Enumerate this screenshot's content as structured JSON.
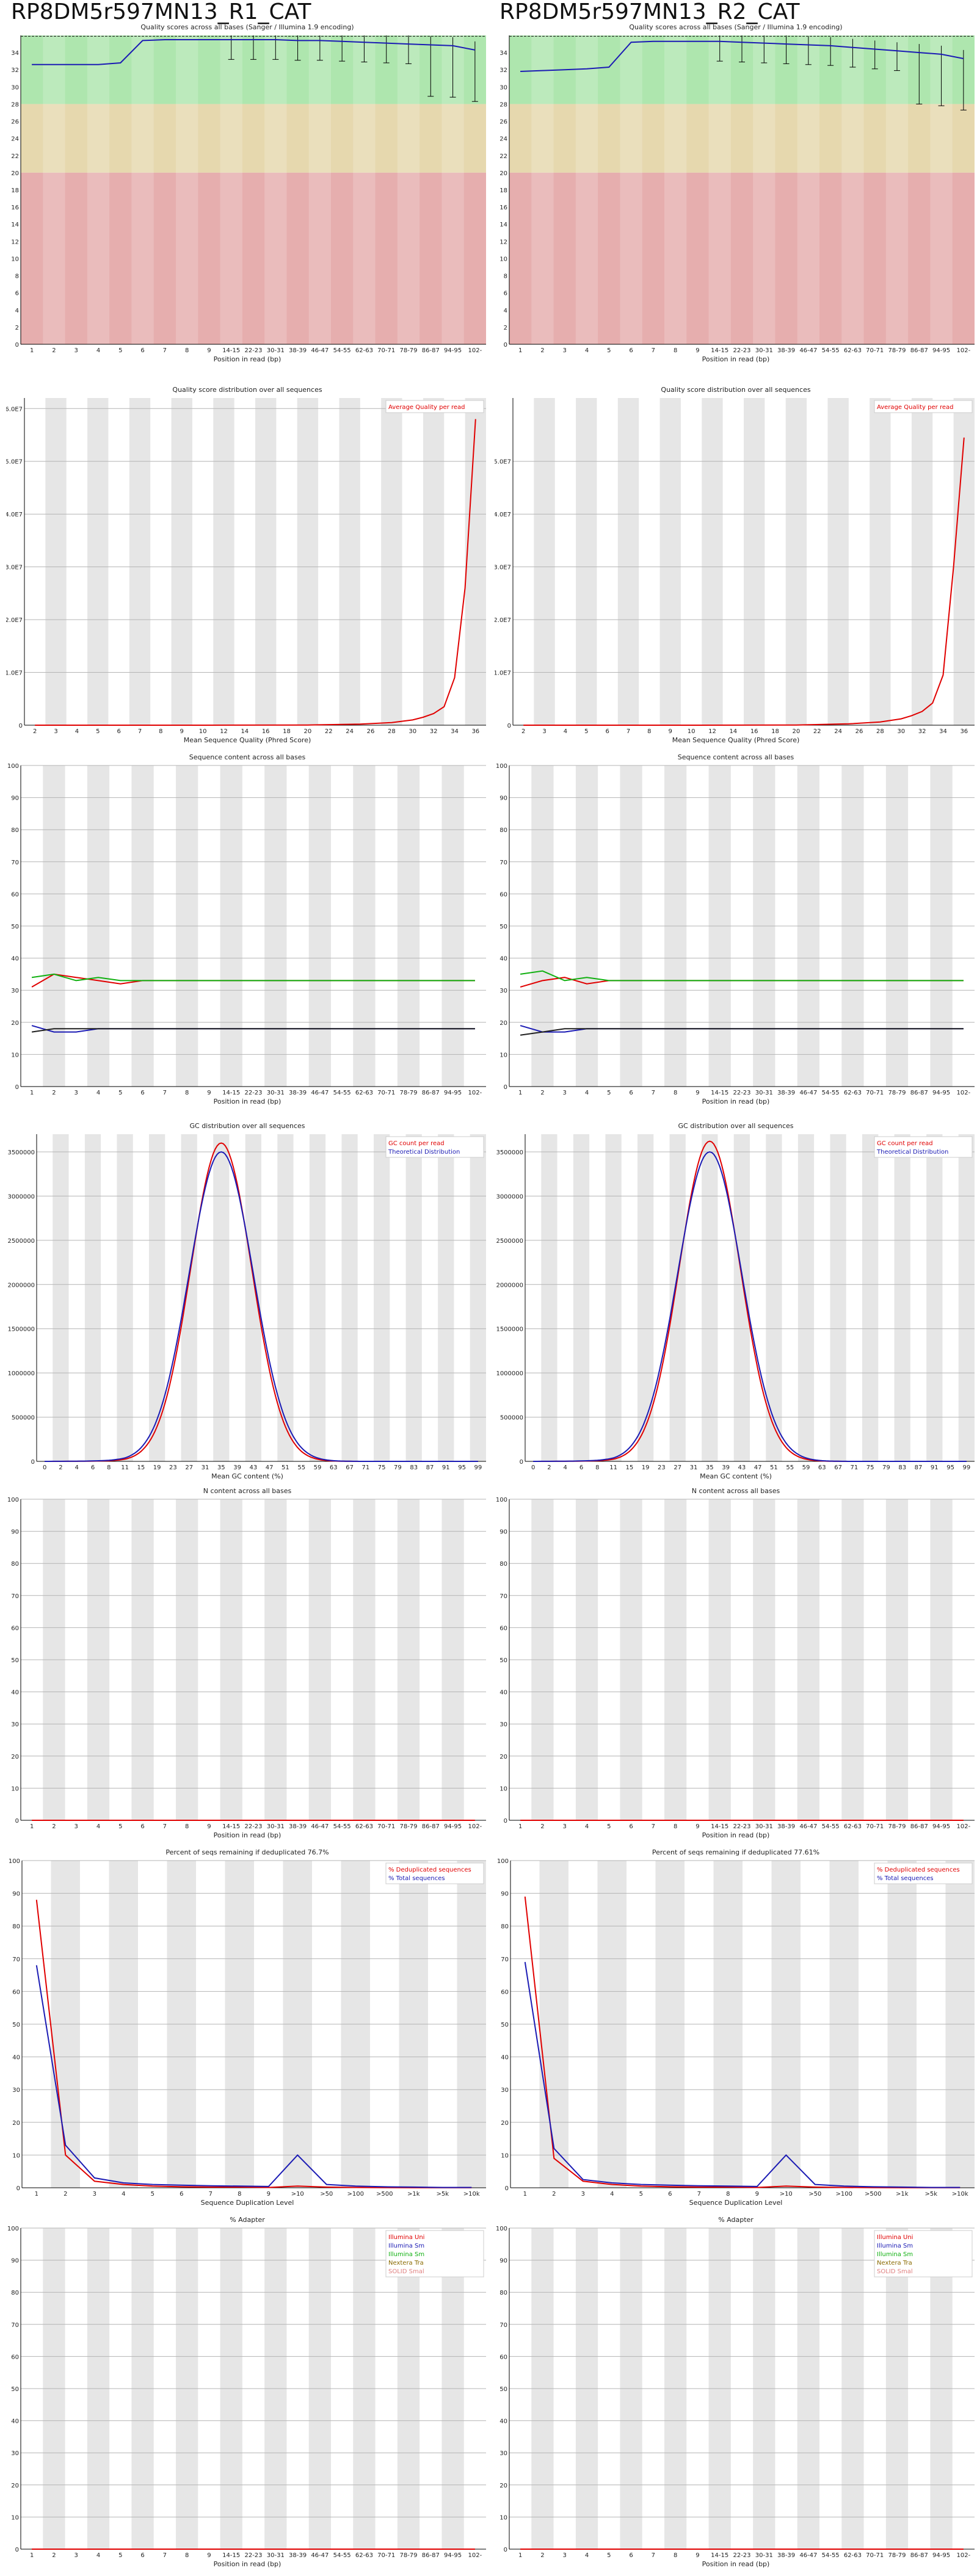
{
  "samples": [
    {
      "name": "RP8DM5r597MN13_R1_CAT"
    },
    {
      "name": "RP8DM5r597MN13_R2_CAT"
    }
  ],
  "colors": {
    "red": "#e00000",
    "blue": "#1b1bb4",
    "green": "#10b010",
    "black": "#202020",
    "qual_good": "#aee6ae",
    "qual_mid": "#e6d8ae",
    "qual_bad": "#e6aeae",
    "stripe": "#e6e6e6",
    "grid": "#b4b4b4"
  },
  "position_ticks": [
    "1",
    "2",
    "3",
    "4",
    "5",
    "6",
    "7",
    "8",
    "9",
    "14-15",
    "22-23",
    "30-31",
    "38-39",
    "46-47",
    "54-55",
    "62-63",
    "70-71",
    "78-79",
    "86-87",
    "94-95",
    "102-"
  ],
  "chart_data": [
    {
      "id": "r1-quality",
      "type": "line",
      "title": "Quality scores across all bases (Sanger / Illumina 1.9 encoding)",
      "xlabel": "Position in read (bp)",
      "ylabel": "",
      "ylim": [
        0,
        36
      ],
      "yticks": [
        "0",
        "2",
        "4",
        "6",
        "8",
        "10",
        "12",
        "14",
        "16",
        "18",
        "20",
        "22",
        "24",
        "26",
        "28",
        "30",
        "32",
        "34"
      ],
      "series": [
        {
          "values": [
            32.6,
            32.6,
            32.6,
            32.6,
            32.8,
            35.4,
            35.5,
            35.5,
            35.5,
            35.5,
            35.5,
            35.5,
            35.4,
            35.4,
            35.3,
            35.2,
            35.1,
            35.0,
            34.9,
            34.8,
            34.3
          ]
        }
      ]
    },
    {
      "id": "r2-quality",
      "type": "line",
      "title": "Quality scores across all bases (Sanger / Illumina 1.9 encoding)",
      "xlabel": "Position in read (bp)",
      "ylabel": "",
      "ylim": [
        0,
        36
      ],
      "yticks": [
        "0",
        "2",
        "4",
        "6",
        "8",
        "10",
        "12",
        "14",
        "16",
        "18",
        "20",
        "22",
        "24",
        "26",
        "28",
        "30",
        "32",
        "34"
      ],
      "series": [
        {
          "values": [
            31.8,
            31.9,
            32.0,
            32.1,
            32.3,
            35.2,
            35.3,
            35.3,
            35.3,
            35.3,
            35.2,
            35.1,
            35.0,
            34.9,
            34.8,
            34.6,
            34.4,
            34.2,
            34.0,
            33.8,
            33.3
          ]
        }
      ]
    },
    {
      "id": "r1-qdist",
      "type": "line",
      "title": "Quality score distribution over all sequences",
      "xlabel": "Mean Sequence Quality (Phred Score)",
      "ylabel": "",
      "ylim": [
        0,
        62000000
      ],
      "xlim": [
        2,
        37
      ],
      "yticks": [
        "0",
        "1.0E7",
        "2.0E7",
        "3.0E7",
        "4.0E7",
        "5.0E7",
        "6.0E7"
      ],
      "xticks": [
        "2",
        "3",
        "4",
        "5",
        "6",
        "7",
        "8",
        "9",
        "10",
        "12",
        "14",
        "16",
        "18",
        "20",
        "22",
        "24",
        "26",
        "28",
        "30",
        "32",
        "34",
        "36"
      ],
      "legend": [
        "Average Quality per read"
      ],
      "series": [
        {
          "name": "Average Quality per read",
          "x": [
            2,
            10,
            20,
            25,
            28,
            30,
            31,
            32,
            33,
            34,
            35,
            36
          ],
          "values": [
            0,
            0,
            40000,
            200000,
            500000,
            1000000,
            1500000,
            2200000,
            3500000,
            9000000,
            26000000,
            58000000
          ]
        }
      ]
    },
    {
      "id": "r2-qdist",
      "type": "line",
      "title": "Quality score distribution over all sequences",
      "xlabel": "Mean Sequence Quality (Phred Score)",
      "ylabel": "",
      "ylim": [
        0,
        62000000
      ],
      "xlim": [
        2,
        37
      ],
      "yticks": [
        "0",
        "1.0E7",
        "2.0E7",
        "3.0E7",
        "4.0E7",
        "5.0E7"
      ],
      "xticks": [
        "2",
        "3",
        "4",
        "5",
        "6",
        "7",
        "8",
        "9",
        "10",
        "12",
        "14",
        "16",
        "18",
        "20",
        "22",
        "24",
        "26",
        "28",
        "30",
        "32",
        "34",
        "36"
      ],
      "legend": [
        "Average Quality per read"
      ],
      "series": [
        {
          "name": "Average Quality per read",
          "x": [
            2,
            10,
            20,
            25,
            28,
            30,
            31,
            32,
            33,
            34,
            35,
            36
          ],
          "values": [
            0,
            0,
            40000,
            250000,
            600000,
            1200000,
            1800000,
            2600000,
            4200000,
            9500000,
            30000000,
            54500000
          ]
        }
      ]
    },
    {
      "id": "r1-content",
      "type": "line",
      "title": "Sequence content across all bases",
      "xlabel": "Position in read (bp)",
      "ylabel": "",
      "ylim": [
        0,
        100
      ],
      "yticks": [
        "0",
        "10",
        "20",
        "30",
        "40",
        "50",
        "60",
        "70",
        "80",
        "90",
        "100"
      ],
      "series": [
        {
          "values": [
            31,
            35,
            34,
            33,
            32,
            33,
            33,
            33,
            33,
            33,
            33,
            33,
            33,
            33,
            33,
            33,
            33,
            33,
            33,
            33,
            33
          ],
          "color": "red"
        },
        {
          "values": [
            34,
            35,
            33,
            34,
            33,
            33,
            33,
            33,
            33,
            33,
            33,
            33,
            33,
            33,
            33,
            33,
            33,
            33,
            33,
            33,
            33
          ],
          "color": "green"
        },
        {
          "values": [
            19,
            17,
            17,
            18,
            18,
            18,
            18,
            18,
            18,
            18,
            18,
            18,
            18,
            18,
            18,
            18,
            18,
            18,
            18,
            18,
            18
          ],
          "color": "blue"
        },
        {
          "values": [
            17,
            18,
            18,
            18,
            18,
            18,
            18,
            18,
            18,
            18,
            18,
            18,
            18,
            18,
            18,
            18,
            18,
            18,
            18,
            18,
            18
          ],
          "color": "black"
        }
      ]
    },
    {
      "id": "r2-content",
      "type": "line",
      "title": "Sequence content across all bases",
      "xlabel": "Position in read (bp)",
      "ylabel": "",
      "ylim": [
        0,
        100
      ],
      "yticks": [
        "0",
        "10",
        "20",
        "30",
        "40",
        "50",
        "60",
        "70",
        "80",
        "90",
        "100"
      ],
      "series": [
        {
          "values": [
            31,
            33,
            34,
            32,
            33,
            33,
            33,
            33,
            33,
            33,
            33,
            33,
            33,
            33,
            33,
            33,
            33,
            33,
            33,
            33,
            33
          ],
          "color": "red"
        },
        {
          "values": [
            35,
            36,
            33,
            34,
            33,
            33,
            33,
            33,
            33,
            33,
            33,
            33,
            33,
            33,
            33,
            33,
            33,
            33,
            33,
            33,
            33
          ],
          "color": "green"
        },
        {
          "values": [
            19,
            17,
            17,
            18,
            18,
            18,
            18,
            18,
            18,
            18,
            18,
            18,
            18,
            18,
            18,
            18,
            18,
            18,
            18,
            18,
            18
          ],
          "color": "blue"
        },
        {
          "values": [
            16,
            17,
            18,
            18,
            18,
            18,
            18,
            18,
            18,
            18,
            18,
            18,
            18,
            18,
            18,
            18,
            18,
            18,
            18,
            18,
            18
          ],
          "color": "black"
        }
      ]
    },
    {
      "id": "r1-gc",
      "type": "line",
      "title": "GC distribution over all sequences",
      "xlabel": "Mean GC content (%)",
      "ylabel": "",
      "ylim": [
        0,
        3700000
      ],
      "xlim": [
        0,
        101
      ],
      "yticks": [
        "0",
        "500000",
        "1000000",
        "1500000",
        "2000000",
        "2500000",
        "3000000",
        "3500000"
      ],
      "xticks": [
        "0",
        "2",
        "4",
        "6",
        "8",
        "11",
        "15",
        "19",
        "23",
        "27",
        "31",
        "35",
        "39",
        "43",
        "47",
        "51",
        "55",
        "59",
        "63",
        "67",
        "71",
        "75",
        "79",
        "83",
        "87",
        "91",
        "95",
        "99"
      ],
      "legend": [
        "GC count per read",
        "Theoretical Distribution"
      ],
      "series": [
        {
          "name": "GC count per read",
          "mu": 35,
          "sigma": 7.6,
          "peak": 3600000,
          "color": "red"
        },
        {
          "name": "Theoretical Distribution",
          "mu": 35,
          "sigma": 8.0,
          "peak": 3500000,
          "color": "blue"
        }
      ]
    },
    {
      "id": "r2-gc",
      "type": "line",
      "title": "GC distribution over all sequences",
      "xlabel": "Mean GC content (%)",
      "ylabel": "",
      "ylim": [
        0,
        3700000
      ],
      "xlim": [
        0,
        101
      ],
      "yticks": [
        "0",
        "500000",
        "1000000",
        "1500000",
        "2000000",
        "2500000",
        "3000000",
        "3500000"
      ],
      "xticks": [
        "0",
        "2",
        "4",
        "6",
        "8",
        "11",
        "15",
        "19",
        "23",
        "27",
        "31",
        "35",
        "39",
        "43",
        "47",
        "51",
        "55",
        "59",
        "63",
        "67",
        "71",
        "75",
        "79",
        "83",
        "87",
        "91",
        "95",
        "99"
      ],
      "legend": [
        "GC count per read",
        "Theoretical Distribution"
      ],
      "series": [
        {
          "name": "GC count per read",
          "mu": 35,
          "sigma": 7.6,
          "peak": 3620000,
          "color": "red"
        },
        {
          "name": "Theoretical Distribution",
          "mu": 35,
          "sigma": 8.0,
          "peak": 3500000,
          "color": "blue"
        }
      ]
    },
    {
      "id": "r1-ncontent",
      "type": "line",
      "title": "N content across all bases",
      "xlabel": "Position in read (bp)",
      "ylabel": "",
      "ylim": [
        0,
        100
      ],
      "yticks": [
        "0",
        "10",
        "20",
        "30",
        "40",
        "50",
        "60",
        "70",
        "80",
        "90",
        "100"
      ],
      "series": [
        {
          "values": [
            0,
            0,
            0,
            0,
            0,
            0,
            0,
            0,
            0,
            0,
            0,
            0,
            0,
            0,
            0,
            0,
            0,
            0,
            0,
            0,
            0
          ],
          "color": "red"
        }
      ]
    },
    {
      "id": "r2-ncontent",
      "type": "line",
      "title": "N content across all bases",
      "xlabel": "Position in read (bp)",
      "ylabel": "",
      "ylim": [
        0,
        100
      ],
      "yticks": [
        "0",
        "10",
        "20",
        "30",
        "40",
        "50",
        "60",
        "70",
        "80",
        "90",
        "100"
      ],
      "series": [
        {
          "values": [
            0,
            0,
            0,
            0,
            0,
            0,
            0,
            0,
            0,
            0,
            0,
            0,
            0,
            0,
            0,
            0,
            0,
            0,
            0,
            0,
            0
          ],
          "color": "red"
        }
      ]
    },
    {
      "id": "r1-dup",
      "type": "line",
      "title": "Percent of seqs remaining if deduplicated 76.7%",
      "xlabel": "Sequence Duplication Level",
      "ylabel": "",
      "ylim": [
        0,
        100
      ],
      "yticks": [
        "0",
        "10",
        "20",
        "30",
        "40",
        "50",
        "60",
        "70",
        "80",
        "90",
        "100"
      ],
      "xticks": [
        "1",
        "2",
        "3",
        "4",
        "5",
        "6",
        "7",
        "8",
        "9",
        ">10",
        ">50",
        ">100",
        ">500",
        ">1k",
        ">5k",
        ">10k"
      ],
      "legend": [
        "% Deduplicated sequences",
        "% Total sequences"
      ],
      "series": [
        {
          "name": "% Deduplicated sequences",
          "values": [
            88,
            10,
            2,
            1,
            0.5,
            0.3,
            0.2,
            0.2,
            0.1,
            0.5,
            0.2,
            0.1,
            0.05,
            0.02,
            0.01,
            0.01
          ],
          "color": "red"
        },
        {
          "name": "% Total sequences",
          "values": [
            68,
            13,
            3,
            1.5,
            1,
            0.8,
            0.6,
            0.5,
            0.4,
            10,
            1,
            0.5,
            0.3,
            0.2,
            0.1,
            0.1
          ],
          "color": "blue"
        }
      ]
    },
    {
      "id": "r2-dup",
      "type": "line",
      "title": "Percent of seqs remaining if deduplicated 77.61%",
      "xlabel": "Sequence Duplication Level",
      "ylabel": "",
      "ylim": [
        0,
        100
      ],
      "yticks": [
        "0",
        "10",
        "20",
        "30",
        "40",
        "50",
        "60",
        "70",
        "80",
        "90",
        "100"
      ],
      "xticks": [
        "1",
        "2",
        "3",
        "4",
        "5",
        "6",
        "7",
        "8",
        "9",
        ">10",
        ">50",
        ">100",
        ">500",
        ">1k",
        ">5k",
        ">10k"
      ],
      "legend": [
        "% Deduplicated sequences",
        "% Total sequences"
      ],
      "series": [
        {
          "name": "% Deduplicated sequences",
          "values": [
            89,
            9,
            2,
            1,
            0.5,
            0.3,
            0.2,
            0.2,
            0.1,
            0.5,
            0.2,
            0.1,
            0.05,
            0.02,
            0.01,
            0.01
          ],
          "color": "red"
        },
        {
          "name": "% Total sequences",
          "values": [
            69,
            12,
            2.5,
            1.5,
            1,
            0.8,
            0.6,
            0.5,
            0.4,
            10,
            1,
            0.5,
            0.3,
            0.2,
            0.1,
            0.1
          ],
          "color": "blue"
        }
      ]
    },
    {
      "id": "r1-adapter",
      "type": "line",
      "title": "% Adapter",
      "xlabel": "Position in read (bp)",
      "ylabel": "",
      "ylim": [
        0,
        100
      ],
      "yticks": [
        "0",
        "10",
        "20",
        "30",
        "40",
        "50",
        "60",
        "70",
        "80",
        "90",
        "100"
      ],
      "legend": [
        "Illumina Uni",
        "Illumina Sm",
        "Illumina Sm",
        "Nextera Tra",
        "SOLID Smal"
      ],
      "series": [
        {
          "name": "Illumina Uni",
          "values": [
            0,
            0,
            0,
            0,
            0,
            0,
            0,
            0,
            0,
            0,
            0,
            0,
            0,
            0,
            0,
            0,
            0,
            0,
            0,
            0,
            0
          ],
          "color": "red"
        }
      ]
    },
    {
      "id": "r2-adapter",
      "type": "line",
      "title": "% Adapter",
      "xlabel": "Position in read (bp)",
      "ylabel": "",
      "ylim": [
        0,
        100
      ],
      "yticks": [
        "0",
        "10",
        "20",
        "30",
        "40",
        "50",
        "60",
        "70",
        "80",
        "90",
        "100"
      ],
      "legend": [
        "Illumina Uni",
        "Illumina Sm",
        "Illumina Sm",
        "Nextera Tra",
        "SOLID Smal"
      ],
      "series": [
        {
          "name": "Illumina Uni",
          "values": [
            0,
            0,
            0,
            0,
            0,
            0,
            0,
            0,
            0,
            0,
            0,
            0,
            0,
            0,
            0,
            0,
            0,
            0,
            0,
            0,
            0
          ],
          "color": "red"
        }
      ]
    }
  ]
}
